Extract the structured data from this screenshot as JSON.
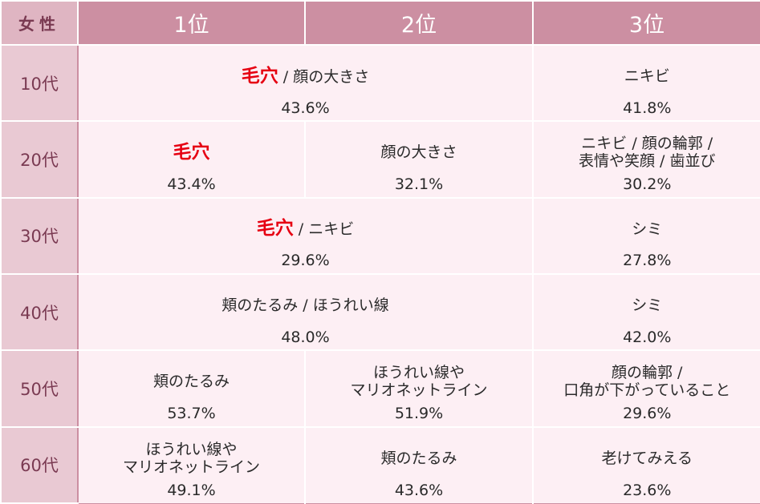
{
  "header": {
    "gender": "女性",
    "rank1": "1位",
    "rank2": "2位",
    "rank3": "3位"
  },
  "rows": [
    {
      "age": "10代",
      "merged": true,
      "r1": {
        "highlight": "毛穴",
        "rest": " / 顔の大きさ",
        "pct": "43.6%"
      },
      "r3": {
        "label": "ニキビ",
        "pct": "41.8%"
      }
    },
    {
      "age": "20代",
      "merged": false,
      "r1": {
        "highlight": "毛穴",
        "rest": "",
        "pct": "43.4%"
      },
      "r2": {
        "label": "顔の大きさ",
        "pct": "32.1%"
      },
      "r3": {
        "label": "ニキビ / 顔の輪郭 /\n表情や笑顔 / 歯並び",
        "pct": "30.2%"
      }
    },
    {
      "age": "30代",
      "merged": true,
      "r1": {
        "highlight": "毛穴",
        "rest": " / ニキビ",
        "pct": "29.6%"
      },
      "r3": {
        "label": "シミ",
        "pct": "27.8%"
      }
    },
    {
      "age": "40代",
      "merged": true,
      "r1": {
        "highlight": "",
        "rest": "頬のたるみ / ほうれい線",
        "pct": "48.0%"
      },
      "r3": {
        "label": "シミ",
        "pct": "42.0%"
      }
    },
    {
      "age": "50代",
      "merged": false,
      "r1": {
        "highlight": "",
        "rest": "頬のたるみ",
        "pct": "53.7%"
      },
      "r2": {
        "label": "ほうれい線や\nマリオネットライン",
        "pct": "51.9%"
      },
      "r3": {
        "label": "顔の輪郭 /\n口角が下がっていること",
        "pct": "29.6%"
      }
    },
    {
      "age": "60代",
      "merged": false,
      "r1": {
        "highlight": "",
        "rest": "ほうれい線や\nマリオネットライン",
        "pct": "49.1%"
      },
      "r2": {
        "label": "頬のたるみ",
        "pct": "43.6%"
      },
      "r3": {
        "label": "老けてみえる",
        "pct": "23.6%"
      }
    }
  ],
  "colors": {
    "header_bg": "#cc8fa2",
    "gender_header_bg": "#dfb5c2",
    "age_bg": "#e9c9d3",
    "cell_bg": "#fdeff4",
    "highlight": "#e60012"
  }
}
